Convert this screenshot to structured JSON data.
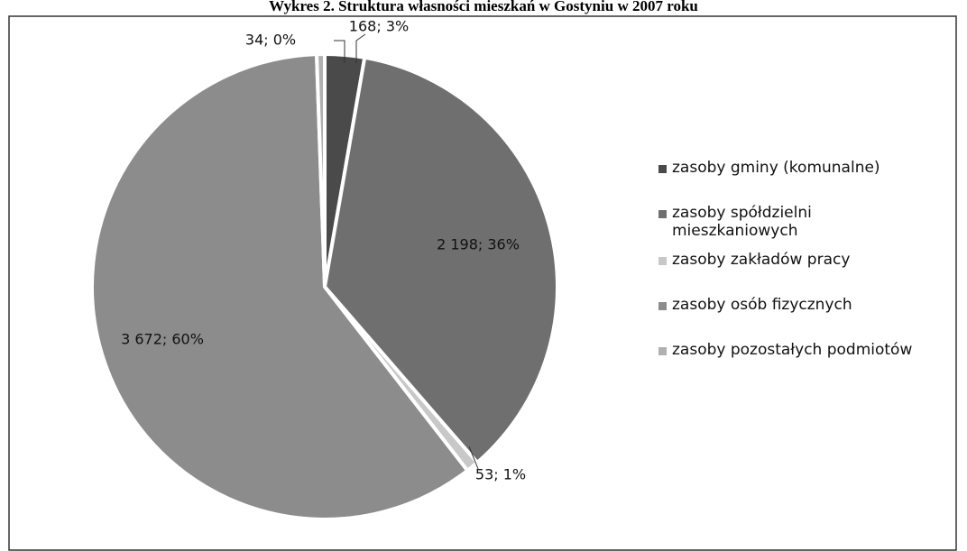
{
  "chart_data": {
    "type": "pie",
    "title": "Wykres 2. Struktura własności mieszkań w Gostyniu w 2007 roku",
    "categories": [
      "zasoby gminy (komunalne)",
      "zasoby spółdzielni mieszkaniowych",
      "zasoby zakładów pracy",
      "zasoby osób fizycznych",
      "zasoby pozostałych podmiotów"
    ],
    "values": [
      168,
      2198,
      53,
      3672,
      34
    ],
    "value_labels": [
      "168; 3%",
      "2 198; 36%",
      "53; 1%",
      "3 672; 60%",
      "34; 0%"
    ],
    "colors": [
      "#4a4a4a",
      "#6f6f6f",
      "#c8c8c8",
      "#8c8c8c",
      "#b0b0b0"
    ],
    "legend": "right"
  }
}
